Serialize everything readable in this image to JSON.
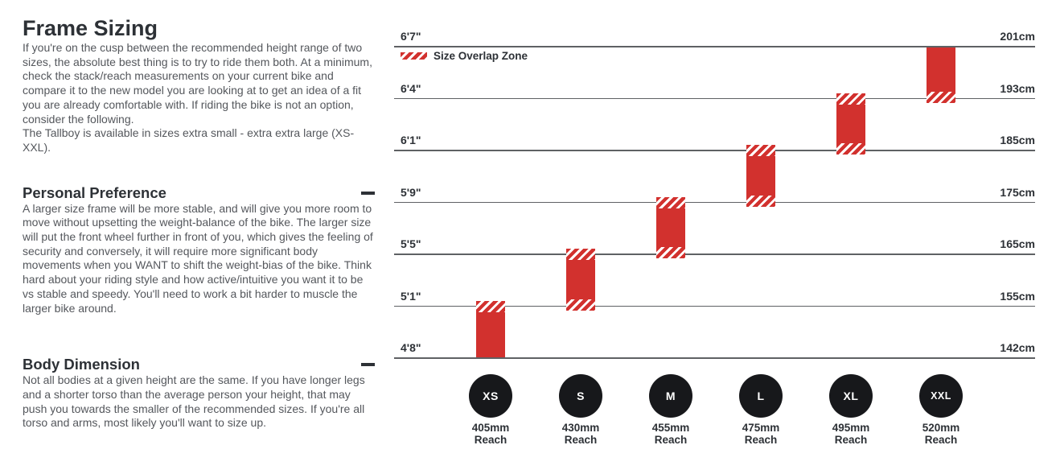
{
  "page": {
    "title": "Frame Sizing",
    "intro": "If you're on the cusp between the recommended height range of two sizes, the absolute best thing is to try to ride them both. At a minimum, check the stack/reach measurements on your current bike and compare it to the new model you are looking at to get an idea of a fit you are already comfortable with. If riding the bike is not an option, consider the following.",
    "tallboy_note": "The Tallboy is available in sizes extra small - extra extra large (XS-XXL)."
  },
  "sections": [
    {
      "heading": "Personal Preference",
      "toggle_state": "expanded",
      "body": "A larger size frame will be more stable, and will give you more room to move without upsetting the weight-balance of the bike. The larger size will put the front wheel further in front of you, which gives the feeling of security and conversely, it will require more significant body movements when you WANT to shift the weight-bias of the bike. Think hard about your riding style and how active/intuitive you want it to be vs stable and speedy. You'll need to work a bit harder to muscle the larger bike around."
    },
    {
      "heading": "Body Dimension",
      "toggle_state": "expanded",
      "body": "Not all bodies at a given height are the same. If you have longer legs and a shorter torso than the average person your height, that may push you towards the smaller of the recommended sizes. If you're all torso and arms, most likely you'll want to size up."
    }
  ],
  "chart_data": {
    "type": "bar",
    "variant": "floating-range-columns",
    "title": "",
    "legend_label": "Size Overlap Zone",
    "legend_position": "top-left",
    "grid": "horizontal-lines",
    "y_axis_left_unit": "feet-inches",
    "y_axis_right_unit": "cm",
    "rows": [
      {
        "ft": "6'7\"",
        "cm": "201cm",
        "cm_value": 201
      },
      {
        "ft": "6'4\"",
        "cm": "193cm",
        "cm_value": 193
      },
      {
        "ft": "6'1\"",
        "cm": "185cm",
        "cm_value": 185
      },
      {
        "ft": "5'9\"",
        "cm": "175cm",
        "cm_value": 175
      },
      {
        "ft": "5'5\"",
        "cm": "165cm",
        "cm_value": 165
      },
      {
        "ft": "5'1\"",
        "cm": "155cm",
        "cm_value": 155
      },
      {
        "ft": "4'8\"",
        "cm": "142cm",
        "cm_value": 142
      }
    ],
    "reach_caption": "Reach",
    "sizes": [
      {
        "label": "XS",
        "reach": "405mm",
        "height_range_cm": [
          142,
          155
        ],
        "height_range_ft": [
          "4'8\"",
          "5'1\""
        ],
        "overlap_top": true,
        "overlap_bottom": false
      },
      {
        "label": "S",
        "reach": "430mm",
        "height_range_cm": [
          155,
          165
        ],
        "height_range_ft": [
          "5'1\"",
          "5'5\""
        ],
        "overlap_top": true,
        "overlap_bottom": true
      },
      {
        "label": "M",
        "reach": "455mm",
        "height_range_cm": [
          165,
          175
        ],
        "height_range_ft": [
          "5'5\"",
          "5'9\""
        ],
        "overlap_top": true,
        "overlap_bottom": true
      },
      {
        "label": "L",
        "reach": "475mm",
        "height_range_cm": [
          175,
          185
        ],
        "height_range_ft": [
          "5'9\"",
          "6'1\""
        ],
        "overlap_top": true,
        "overlap_bottom": true
      },
      {
        "label": "XL",
        "reach": "495mm",
        "height_range_cm": [
          185,
          193
        ],
        "height_range_ft": [
          "6'1\"",
          "6'4\""
        ],
        "overlap_top": true,
        "overlap_bottom": true
      },
      {
        "label": "XXL",
        "reach": "520mm",
        "height_range_cm": [
          193,
          201
        ],
        "height_range_ft": [
          "6'4\"",
          "6'7\""
        ],
        "overlap_top": false,
        "overlap_bottom": true
      }
    ],
    "colors": {
      "bar_red": "#d2312e",
      "hatch_stripe": "#ffffff",
      "gridline": "#5f6164",
      "circle_black": "#17181b",
      "text_dark": "#2d3136",
      "text_body": "#54575c"
    }
  }
}
